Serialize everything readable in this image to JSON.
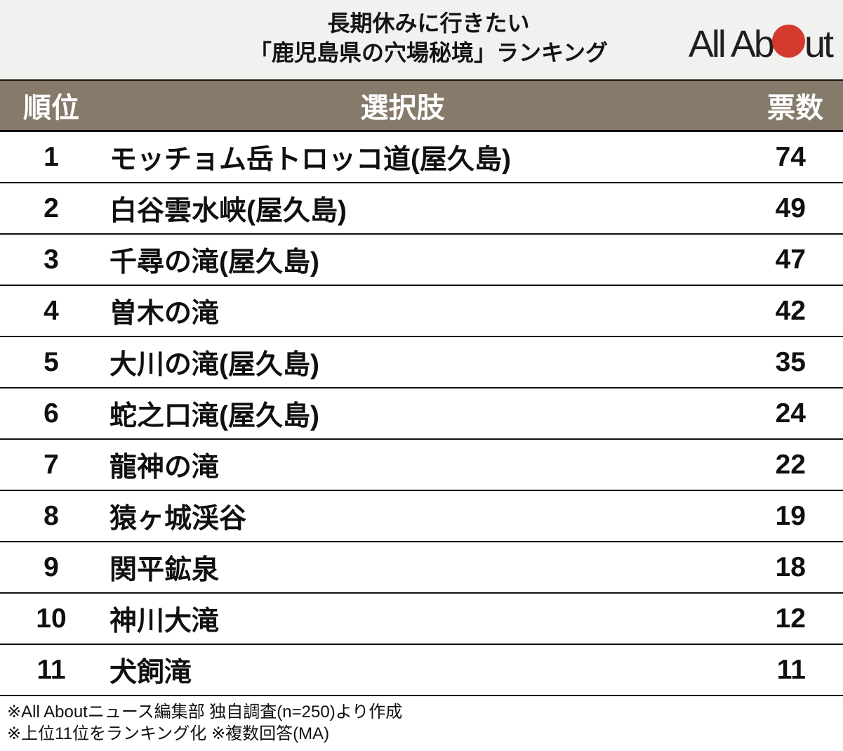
{
  "header": {
    "band_bg": "#f1f1f0",
    "title_line1": "長期休みに行きたい",
    "title_line2": "「鹿児島県の穴場秘境」ランキング",
    "logo": {
      "name": "All About",
      "text_before": "All Ab",
      "text_after": "ut",
      "dot_color": "#d53a2e",
      "text_color": "#221e1f"
    }
  },
  "table": {
    "header_bg": "#867a6b",
    "header_text_color": "#ffffff",
    "columns": {
      "rank": "順位",
      "choice": "選択肢",
      "votes": "票数"
    },
    "rows": [
      {
        "rank": "1",
        "choice": "モッチョム岳トロッコ道(屋久島)",
        "votes": "74"
      },
      {
        "rank": "2",
        "choice": "白谷雲水峡(屋久島)",
        "votes": "49"
      },
      {
        "rank": "3",
        "choice": "千尋の滝(屋久島)",
        "votes": "47"
      },
      {
        "rank": "4",
        "choice": "曽木の滝",
        "votes": "42"
      },
      {
        "rank": "5",
        "choice": "大川の滝(屋久島)",
        "votes": "35"
      },
      {
        "rank": "6",
        "choice": "蛇之口滝(屋久島)",
        "votes": "24"
      },
      {
        "rank": "7",
        "choice": "龍神の滝",
        "votes": "22"
      },
      {
        "rank": "8",
        "choice": "猿ヶ城渓谷",
        "votes": "19"
      },
      {
        "rank": "9",
        "choice": "関平鉱泉",
        "votes": "18"
      },
      {
        "rank": "10",
        "choice": "神川大滝",
        "votes": "12"
      },
      {
        "rank": "11",
        "choice": "犬飼滝",
        "votes": "11"
      }
    ]
  },
  "footer": {
    "line1": "※All Aboutニュース編集部 独自調査(n=250)より作成",
    "line2": "※上位11位をランキング化 ※複数回答(MA)"
  },
  "chart_data": {
    "type": "table",
    "title": "長期休みに行きたい「鹿児島県の穴場秘境」ランキング",
    "columns": [
      "順位",
      "選択肢",
      "票数"
    ],
    "ranks": [
      1,
      2,
      3,
      4,
      5,
      6,
      7,
      8,
      9,
      10,
      11
    ],
    "categories": [
      "モッチョム岳トロッコ道(屋久島)",
      "白谷雲水峡(屋久島)",
      "千尋の滝(屋久島)",
      "曽木の滝",
      "大川の滝(屋久島)",
      "蛇之口滝(屋久島)",
      "龍神の滝",
      "猿ヶ城渓谷",
      "関平鉱泉",
      "神川大滝",
      "犬飼滝"
    ],
    "values": [
      74,
      49,
      47,
      42,
      35,
      24,
      22,
      19,
      18,
      12,
      11
    ],
    "sample_note": "n=250",
    "source": "All Aboutニュース編集部 独自調査"
  }
}
